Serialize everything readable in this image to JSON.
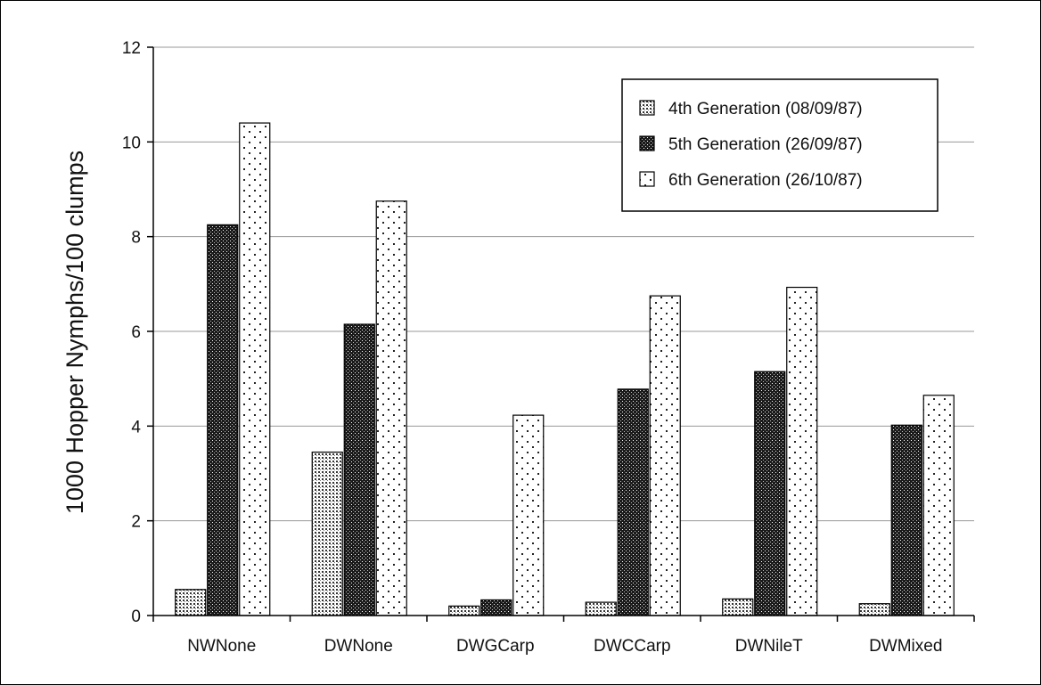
{
  "chart_data": {
    "type": "bar",
    "title": "",
    "xlabel": "",
    "ylabel": "1000 Hopper Nymphs/100 clumps",
    "ylim": [
      0,
      12
    ],
    "yticks": [
      0,
      2,
      4,
      6,
      8,
      10,
      12
    ],
    "grid": true,
    "legend_position": "top-right",
    "categories": [
      "NWNone",
      "DWNone",
      "DWGCarp",
      "DWCCarp",
      "DWNileT",
      "DWMixed"
    ],
    "series": [
      {
        "name": "4th Generation (08/09/87)",
        "pattern": "fine-dots",
        "values": [
          0.55,
          3.45,
          0.2,
          0.28,
          0.35,
          0.25
        ]
      },
      {
        "name": "5th Generation (26/09/87)",
        "pattern": "dense-dark",
        "values": [
          8.25,
          6.15,
          0.33,
          4.78,
          5.15,
          4.02
        ]
      },
      {
        "name": "6th Generation (26/10/87)",
        "pattern": "sparse-dots",
        "values": [
          10.4,
          8.75,
          4.23,
          6.75,
          6.93,
          4.65
        ]
      }
    ]
  }
}
